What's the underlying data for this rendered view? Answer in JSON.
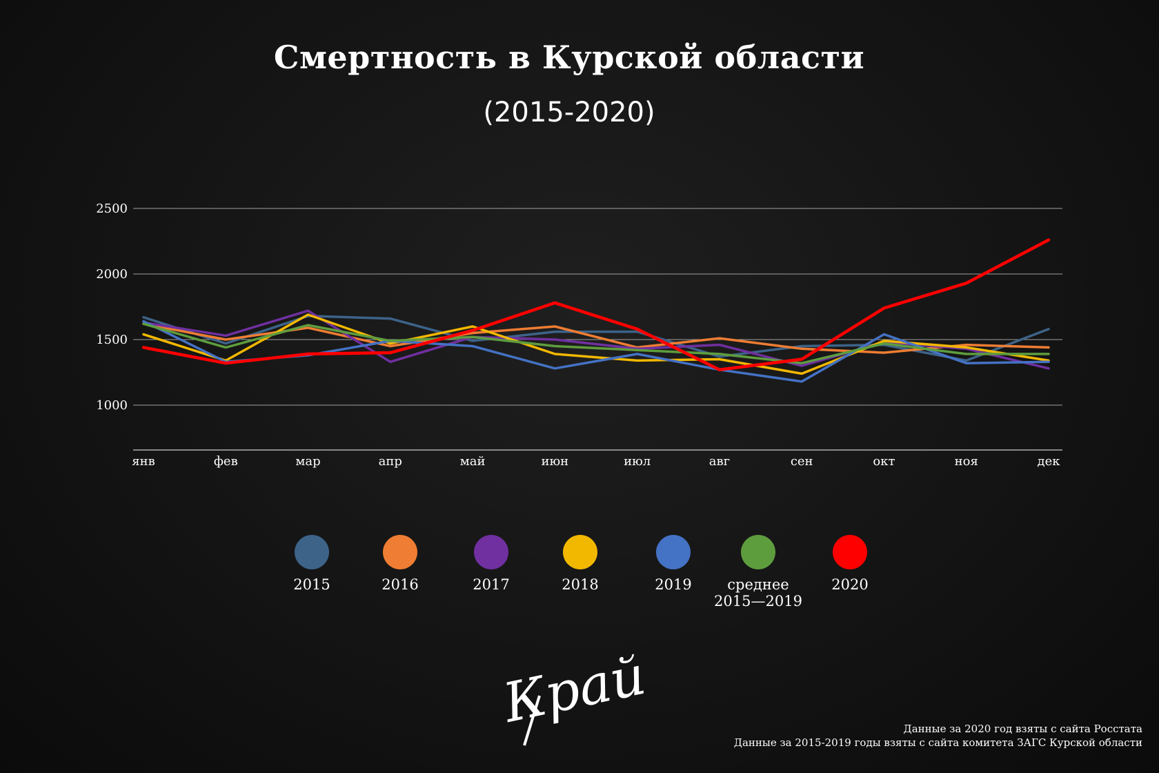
{
  "header": {
    "title": "Смертность в Курской области",
    "subtitle": "(2015-2020)"
  },
  "chart_data": {
    "type": "line",
    "categories": [
      "янв",
      "фев",
      "мар",
      "апр",
      "май",
      "июн",
      "июл",
      "авг",
      "сен",
      "окт",
      "ноя",
      "дек"
    ],
    "y_ticks": [
      1000,
      1500,
      2000,
      2500
    ],
    "ylim": [
      660,
      2500
    ],
    "grid": true,
    "legend_position": "bottom",
    "series": [
      {
        "name": "2015",
        "color": "#3d6389",
        "values": [
          1670,
          1470,
          1680,
          1660,
          1490,
          1560,
          1560,
          1370,
          1450,
          1460,
          1340,
          1580
        ]
      },
      {
        "name": "2016",
        "color": "#ef7d33",
        "values": [
          1620,
          1500,
          1590,
          1450,
          1550,
          1600,
          1440,
          1510,
          1430,
          1400,
          1460,
          1440
        ]
      },
      {
        "name": "2017",
        "color": "#7030a0",
        "values": [
          1630,
          1530,
          1720,
          1330,
          1520,
          1500,
          1430,
          1460,
          1300,
          1480,
          1430,
          1280
        ]
      },
      {
        "name": "2018",
        "color": "#f2b800",
        "values": [
          1540,
          1340,
          1690,
          1470,
          1600,
          1390,
          1340,
          1350,
          1240,
          1490,
          1440,
          1340
        ]
      },
      {
        "name": "2019",
        "color": "#4472c4",
        "values": [
          1640,
          1330,
          1380,
          1490,
          1450,
          1280,
          1390,
          1270,
          1180,
          1540,
          1320,
          1330
        ]
      },
      {
        "name": "среднее 2015—2019",
        "color": "#5e9d3e",
        "values": [
          1620,
          1440,
          1610,
          1490,
          1520,
          1450,
          1420,
          1390,
          1320,
          1470,
          1390,
          1390
        ]
      },
      {
        "name": "2020",
        "color": "#ff0000",
        "values": [
          1440,
          1320,
          1390,
          1400,
          1570,
          1780,
          1580,
          1270,
          1350,
          1740,
          1930,
          2260
        ]
      }
    ]
  },
  "legend": [
    {
      "label": "2015",
      "color": "#3d6389"
    },
    {
      "label": "2016",
      "color": "#ef7d33"
    },
    {
      "label": "2017",
      "color": "#7030a0"
    },
    {
      "label": "2018",
      "color": "#f2b800"
    },
    {
      "label": "2019",
      "color": "#4472c4"
    },
    {
      "label": "среднее\n2015—2019",
      "color": "#5e9d3e"
    },
    {
      "label": "2020",
      "color": "#ff0000"
    }
  ],
  "logo": {
    "text": "Край"
  },
  "source": {
    "line1": "Данные за 2020 год взяты с сайта Росстата",
    "line2": "Данные за 2015-2019 годы взяты с сайта комитета ЗАГС Курской области"
  }
}
